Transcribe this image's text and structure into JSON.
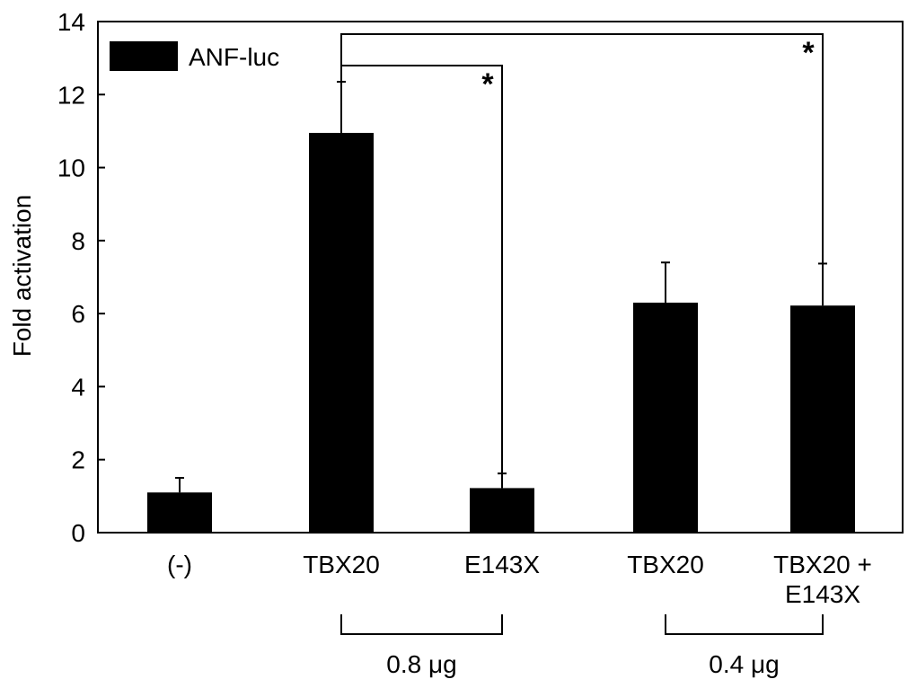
{
  "chart_data": {
    "type": "bar",
    "categories": [
      "(-)",
      "TBX20",
      "E143X",
      "TBX20",
      "TBX20 +\nE143X"
    ],
    "values": [
      1.1,
      10.95,
      1.22,
      6.3,
      6.22
    ],
    "errors": [
      0.4,
      1.4,
      0.4,
      1.1,
      1.15
    ],
    "ylabel": "Fold activation",
    "ylim": [
      0,
      14
    ],
    "yticks": [
      0,
      2,
      4,
      6,
      8,
      10,
      12,
      14
    ],
    "legend": {
      "label": "ANF-luc",
      "position": "top-left"
    },
    "significance": [
      {
        "from": 1,
        "to": 2,
        "label": "*"
      },
      {
        "from": 1,
        "to": 4,
        "label": "*"
      }
    ],
    "groups": [
      {
        "label": "0.8 μg",
        "from": 1,
        "to": 2
      },
      {
        "label": "0.4 μg",
        "from": 3,
        "to": 4
      }
    ],
    "colors": {
      "bar": "#000000",
      "axis": "#000000",
      "background": "#ffffff"
    },
    "grid": false
  }
}
